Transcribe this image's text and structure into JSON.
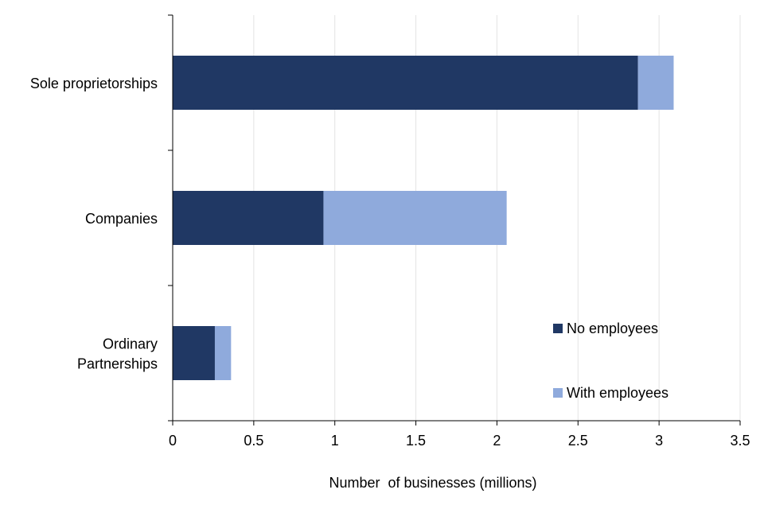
{
  "chart_data": {
    "type": "bar",
    "orientation": "horizontal",
    "stacked": true,
    "categories": [
      "Sole proprietorships",
      "Companies",
      "Ordinary Partnerships"
    ],
    "category_lines": [
      [
        "Sole proprietorships"
      ],
      [
        "Companies"
      ],
      [
        "Ordinary",
        "Partnerships"
      ]
    ],
    "series": [
      {
        "name": "No employees",
        "color": "#203864",
        "values": [
          2.87,
          0.93,
          0.26
        ]
      },
      {
        "name": "With employees",
        "color": "#8FAADC",
        "values": [
          0.22,
          1.13,
          0.1
        ]
      }
    ],
    "xlabel": "Number  of businesses (millions)",
    "ylabel": "",
    "xlim": [
      0,
      3.5
    ],
    "xticks": [
      "0",
      "0.5",
      "1",
      "1.5",
      "2",
      "2.5",
      "3",
      "3.5"
    ],
    "grid": "vertical",
    "legend_position": "bottom-right"
  }
}
